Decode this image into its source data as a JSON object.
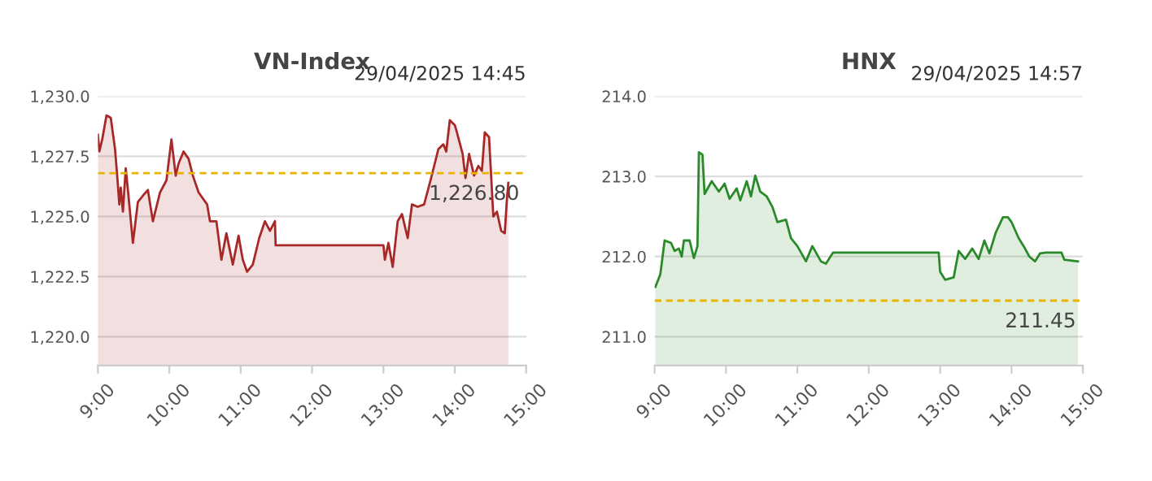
{
  "chart_data": [
    {
      "type": "area",
      "title": "VN-Index",
      "subtitle": "29/04/2025 14:45",
      "grid": "y",
      "legend": false,
      "x": [
        9.0,
        9.02,
        9.06,
        9.12,
        9.18,
        9.24,
        9.27,
        9.3,
        9.32,
        9.35,
        9.39,
        9.43,
        9.49,
        9.56,
        9.64,
        9.7,
        9.77,
        9.87,
        9.96,
        10.03,
        10.09,
        10.13,
        10.2,
        10.27,
        10.33,
        10.41,
        10.53,
        10.57,
        10.66,
        10.73,
        10.8,
        10.89,
        10.97,
        11.03,
        11.09,
        11.17,
        11.26,
        11.34,
        11.41,
        11.48,
        11.49,
        13.0,
        13.02,
        13.07,
        13.13,
        13.2,
        13.26,
        13.34,
        13.4,
        13.48,
        13.57,
        13.66,
        13.77,
        13.84,
        13.88,
        13.93,
        14.0,
        14.03,
        14.11,
        14.15,
        14.2,
        14.27,
        14.33,
        14.38,
        14.42,
        14.48,
        14.54,
        14.59,
        14.65,
        14.7,
        14.73,
        14.75
      ],
      "series": [
        {
          "color": "#a82828",
          "values": [
            1228.4,
            1227.7,
            1228.2,
            1229.2,
            1229.1,
            1227.8,
            1226.7,
            1225.5,
            1226.2,
            1225.2,
            1227.0,
            1225.8,
            1223.9,
            1225.6,
            1225.9,
            1226.1,
            1224.8,
            1226.0,
            1226.5,
            1228.2,
            1226.7,
            1227.2,
            1227.7,
            1227.4,
            1226.7,
            1226.0,
            1225.5,
            1224.8,
            1224.8,
            1223.2,
            1224.3,
            1223.0,
            1224.2,
            1223.2,
            1222.7,
            1223.0,
            1224.1,
            1224.8,
            1224.4,
            1224.8,
            1223.8,
            1223.8,
            1223.2,
            1223.9,
            1222.9,
            1224.8,
            1225.1,
            1224.1,
            1225.5,
            1225.4,
            1225.5,
            1226.5,
            1227.8,
            1228.0,
            1227.7,
            1229.0,
            1228.8,
            1228.5,
            1227.6,
            1226.6,
            1227.6,
            1226.7,
            1227.1,
            1226.9,
            1228.5,
            1228.3,
            1225.0,
            1225.2,
            1224.4,
            1224.3,
            1225.7,
            1226.4
          ]
        }
      ],
      "xlim": [
        9,
        15
      ],
      "xticks": [
        {
          "value": 9,
          "label": "9:00"
        },
        {
          "value": 10,
          "label": "10:00"
        },
        {
          "value": 11,
          "label": "11:00"
        },
        {
          "value": 12,
          "label": "12:00"
        },
        {
          "value": 13,
          "label": "13:00"
        },
        {
          "value": 14,
          "label": "14:00"
        },
        {
          "value": 15,
          "label": "15:00"
        }
      ],
      "ylim": [
        1218.8,
        1230
      ],
      "yticks": [
        {
          "value": 1220,
          "label": "1,220.0"
        },
        {
          "value": 1222.5,
          "label": "1,222.5"
        },
        {
          "value": 1225,
          "label": "1,225.0"
        },
        {
          "value": 1227.5,
          "label": "1,227.5"
        },
        {
          "value": 1230,
          "label": "1,230.0"
        }
      ],
      "ref_lines": [
        {
          "axis": "y",
          "value": 1226.8,
          "label": "1,226.80",
          "color": "#e8b400",
          "line_style": "dashed"
        }
      ]
    },
    {
      "type": "area",
      "title": "HNX",
      "subtitle": "29/04/2025 14:57",
      "grid": "y",
      "legend": false,
      "x": [
        9.01,
        9.08,
        9.14,
        9.23,
        9.28,
        9.34,
        9.38,
        9.41,
        9.49,
        9.55,
        9.6,
        9.62,
        9.67,
        9.7,
        9.8,
        9.9,
        9.98,
        10.05,
        10.15,
        10.2,
        10.29,
        10.35,
        10.41,
        10.48,
        10.57,
        10.65,
        10.72,
        10.84,
        10.91,
        11.0,
        11.12,
        11.21,
        11.33,
        11.4,
        11.5,
        12.98,
        13.0,
        13.07,
        13.19,
        13.26,
        13.35,
        13.45,
        13.54,
        13.62,
        13.69,
        13.78,
        13.88,
        13.95,
        14.0,
        14.1,
        14.17,
        14.25,
        14.33,
        14.4,
        14.48,
        14.7,
        14.74,
        14.93
      ],
      "series": [
        {
          "color": "#2a8a2a",
          "values": [
            211.62,
            211.78,
            212.2,
            212.17,
            212.07,
            212.1,
            212.0,
            212.2,
            212.2,
            211.98,
            212.13,
            213.3,
            213.27,
            212.78,
            212.94,
            212.81,
            212.91,
            212.72,
            212.85,
            212.7,
            212.94,
            212.75,
            213.01,
            212.81,
            212.75,
            212.62,
            212.43,
            212.46,
            212.23,
            212.13,
            211.94,
            212.13,
            211.94,
            211.91,
            212.05,
            212.05,
            211.81,
            211.71,
            211.74,
            212.07,
            211.97,
            212.1,
            211.97,
            212.2,
            212.04,
            212.3,
            212.49,
            212.49,
            212.43,
            212.23,
            212.13,
            212.0,
            211.94,
            212.04,
            212.05,
            212.05,
            211.96,
            211.94
          ]
        }
      ],
      "xlim": [
        9,
        15
      ],
      "xticks": [
        {
          "value": 9,
          "label": "9:00"
        },
        {
          "value": 10,
          "label": "10:00"
        },
        {
          "value": 11,
          "label": "11:00"
        },
        {
          "value": 12,
          "label": "12:00"
        },
        {
          "value": 13,
          "label": "13:00"
        },
        {
          "value": 14,
          "label": "14:00"
        },
        {
          "value": 15,
          "label": "15:00"
        }
      ],
      "ylim": [
        210.64,
        214
      ],
      "yticks": [
        {
          "value": 211,
          "label": "211.0"
        },
        {
          "value": 212,
          "label": "212.0"
        },
        {
          "value": 213,
          "label": "213.0"
        },
        {
          "value": 214,
          "label": "214.0"
        }
      ],
      "ref_lines": [
        {
          "axis": "y",
          "value": 211.45,
          "label": "211.45",
          "color": "#e8b400",
          "line_style": "dashed"
        }
      ]
    }
  ]
}
